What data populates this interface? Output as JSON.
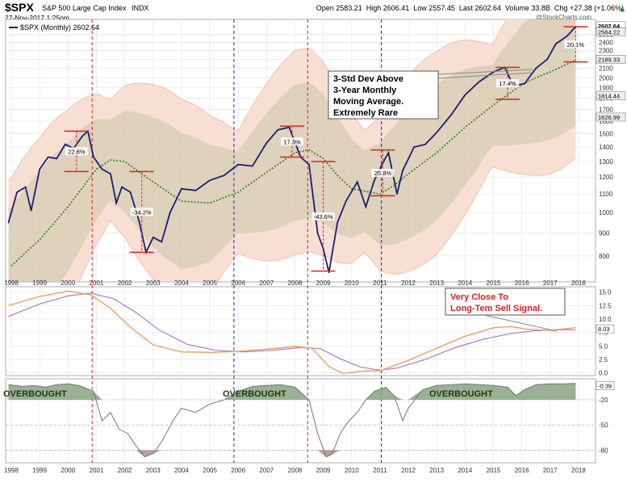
{
  "header": {
    "symbol": "$SPX",
    "name": "S&P 500 Large Cap Index",
    "exchange": "INDX",
    "date": "27-Nov-2017 1:25pm",
    "quote": "Open 2583.21  High 2606.41  Low 2557.45  Last 2602.64  Volume 33.8B  Chg +27.38 (+1.06%)",
    "quote_arrow": "▲",
    "watermark": "@StockCharts.com"
  },
  "colors": {
    "price": "#1a1f6e",
    "ma": "#2e7d1f",
    "band_inner": "#d6c7ad",
    "band_outer": "#f7dccf",
    "red_line": "#e0201a",
    "blue_line": "#2222c0",
    "macd": "#f39c5a",
    "signal": "#a87cd0",
    "rsi_fill": "#8fa88a",
    "rsi_low_fill": "#b89090"
  },
  "chart_data": [
    {
      "type": "line",
      "panel": "price",
      "legend": "$SPX (Monthly) 2602.64",
      "y_scale": "log",
      "ylim": [
        700,
        2700
      ],
      "xlim": [
        1997.8,
        2018.6
      ],
      "y_ticks": [
        800,
        900,
        1000,
        1100,
        1200,
        1300,
        1400,
        1500,
        1600,
        1700,
        1800,
        1900,
        2000,
        2100,
        2200,
        2300,
        2400,
        2500
      ],
      "x_ticks": [
        1998,
        1999,
        2000,
        2001,
        2002,
        2003,
        2004,
        2005,
        2006,
        2007,
        2008,
        2009,
        2010,
        2011,
        2012,
        2013,
        2014,
        2015,
        2016,
        2017,
        2018
      ],
      "right_labels": [
        "2602.64",
        "2564.22",
        "2189.33",
        "1814.44",
        "1626.99"
      ],
      "series": [
        {
          "name": "$SPX (Monthly)",
          "x": [
            1997.9,
            1998.2,
            1998.5,
            1998.7,
            1999.0,
            1999.3,
            1999.6,
            1999.9,
            2000.2,
            2000.5,
            2000.7,
            2000.9,
            2001.2,
            2001.5,
            2001.7,
            2001.9,
            2002.2,
            2002.5,
            2002.75,
            2003.0,
            2003.3,
            2003.6,
            2004.0,
            2004.5,
            2005.0,
            2005.5,
            2006.0,
            2006.5,
            2007.0,
            2007.4,
            2007.8,
            2008.2,
            2008.5,
            2008.8,
            2009.0,
            2009.2,
            2009.5,
            2009.8,
            2010.2,
            2010.5,
            2010.8,
            2011.1,
            2011.3,
            2011.6,
            2011.8,
            2012.2,
            2012.6,
            2013.0,
            2013.5,
            2014.0,
            2014.5,
            2015.0,
            2015.4,
            2015.7,
            2016.1,
            2016.5,
            2016.9,
            2017.2,
            2017.6,
            2017.9
          ],
          "y": [
            950,
            1110,
            1140,
            1010,
            1250,
            1330,
            1320,
            1420,
            1390,
            1480,
            1520,
            1330,
            1250,
            1220,
            1050,
            1140,
            1110,
            960,
            815,
            880,
            860,
            1000,
            1130,
            1120,
            1180,
            1210,
            1280,
            1270,
            1430,
            1530,
            1550,
            1330,
            1280,
            900,
            830,
            735,
            950,
            1060,
            1170,
            1030,
            1180,
            1290,
            1360,
            1100,
            1240,
            1400,
            1420,
            1510,
            1650,
            1830,
            1960,
            2060,
            2110,
            1920,
            1940,
            2100,
            2200,
            2380,
            2480,
            2602
          ]
        },
        {
          "name": "3-Year Monthly Moving Average",
          "x": [
            1998.0,
            1999.0,
            2000.0,
            2001.0,
            2001.5,
            2002.0,
            2003.0,
            2004.0,
            2005.0,
            2006.0,
            2007.0,
            2008.0,
            2008.5,
            2009.0,
            2009.5,
            2010.0,
            2011.0,
            2011.5,
            2012.0,
            2013.0,
            2014.0,
            2015.0,
            2016.0,
            2016.5,
            2017.0,
            2017.9
          ],
          "y": [
            760,
            870,
            1030,
            1250,
            1310,
            1300,
            1170,
            1060,
            1050,
            1110,
            1230,
            1360,
            1380,
            1320,
            1210,
            1130,
            1100,
            1150,
            1220,
            1360,
            1550,
            1740,
            1930,
            2000,
            2060,
            2189
          ]
        }
      ],
      "annotations": [
        {
          "text": "22.8%"
        },
        {
          "text": "-34.2%"
        },
        {
          "text": "17.3%"
        },
        {
          "text": "-43.6%"
        },
        {
          "text": "25.8%"
        },
        {
          "text": "17.4%"
        },
        {
          "text": "20.1%"
        }
      ],
      "callout": [
        "3-Std Dev Above",
        "3-Year Monthly",
        "Moving Average.",
        "Extremely Rare"
      ]
    },
    {
      "type": "line",
      "panel": "indicator",
      "ylim": [
        -0.5,
        16
      ],
      "y_ticks": [
        "15.0",
        "12.5",
        "10.0",
        "7.5",
        "5.0",
        "2.5",
        "0.0"
      ],
      "right_label": "8.03",
      "callout": [
        "Very Close To",
        "Long-Tem Sell Signal."
      ],
      "series": [
        {
          "name": "Fast line (orange)",
          "x": [
            1997.9,
            1999.0,
            2000.0,
            2000.8,
            2001.5,
            2002.2,
            2003.0,
            2004.0,
            2005.0,
            2006.0,
            2007.0,
            2008.0,
            2008.6,
            2009.2,
            2009.7,
            2010.3,
            2011.0,
            2012.0,
            2013.0,
            2014.0,
            2015.0,
            2015.6,
            2016.2,
            2017.0,
            2017.9
          ],
          "y": [
            12.5,
            14.2,
            15.2,
            14.5,
            12.0,
            8.5,
            5.2,
            3.9,
            3.8,
            4.0,
            4.4,
            4.9,
            4.6,
            1.2,
            -0.1,
            0.3,
            0.4,
            2.3,
            4.6,
            6.8,
            8.4,
            8.6,
            8.1,
            7.9,
            8.4
          ]
        },
        {
          "name": "Slow line (purple)",
          "x": [
            1997.9,
            1999.0,
            2000.0,
            2000.8,
            2001.6,
            2002.4,
            2003.2,
            2004.2,
            2005.2,
            2006.2,
            2007.2,
            2008.2,
            2008.9,
            2009.6,
            2010.3,
            2011.0,
            2011.6,
            2012.6,
            2013.6,
            2014.6,
            2015.6,
            2016.4,
            2017.2,
            2017.9
          ],
          "y": [
            10.5,
            12.8,
            14.3,
            14.8,
            13.8,
            11.2,
            8.0,
            5.3,
            4.2,
            3.9,
            4.2,
            4.7,
            4.5,
            2.6,
            1.1,
            0.5,
            0.9,
            2.5,
            4.6,
            6.2,
            7.3,
            7.8,
            8.0,
            8.0
          ]
        }
      ]
    },
    {
      "type": "area",
      "panel": "oscillator",
      "ylim": [
        -95,
        5
      ],
      "y_ticks": [
        "-20",
        "-50",
        "-80"
      ],
      "right_label": "-0.39",
      "labels": [
        "OVERBOUGHT",
        "OVERBOUGHT",
        "OVERBOUGHT"
      ],
      "series": [
        {
          "name": "Oscillator",
          "x": [
            1997.9,
            1998.4,
            1998.8,
            1999.2,
            1999.6,
            2000.0,
            2000.4,
            2000.9,
            2001.2,
            2001.5,
            2001.8,
            2002.1,
            2002.4,
            2002.7,
            2003.0,
            2003.3,
            2003.7,
            2004.0,
            2004.5,
            2005.0,
            2005.5,
            2006.0,
            2006.5,
            2007.0,
            2007.5,
            2008.0,
            2008.5,
            2008.8,
            2009.1,
            2009.3,
            2009.6,
            2009.9,
            2010.2,
            2010.5,
            2010.8,
            2011.2,
            2011.5,
            2011.8,
            2012.0,
            2012.5,
            2013.0,
            2013.5,
            2014.0,
            2014.5,
            2015.0,
            2015.5,
            2015.8,
            2016.1,
            2016.5,
            2017.0,
            2017.5,
            2017.9
          ],
          "y": [
            -2,
            -4,
            -3,
            -5,
            -2,
            -1,
            -3,
            -10,
            -45,
            -35,
            -55,
            -60,
            -75,
            -88,
            -84,
            -70,
            -45,
            -30,
            -35,
            -25,
            -20,
            -10,
            -4,
            -3,
            -2,
            -5,
            -20,
            -60,
            -88,
            -85,
            -60,
            -45,
            -35,
            -20,
            -10,
            -5,
            -15,
            -45,
            -30,
            -8,
            -3,
            -2,
            -1,
            -2,
            -3,
            -5,
            -15,
            -8,
            -2,
            -1,
            -1,
            -0.4
          ]
        }
      ]
    }
  ]
}
